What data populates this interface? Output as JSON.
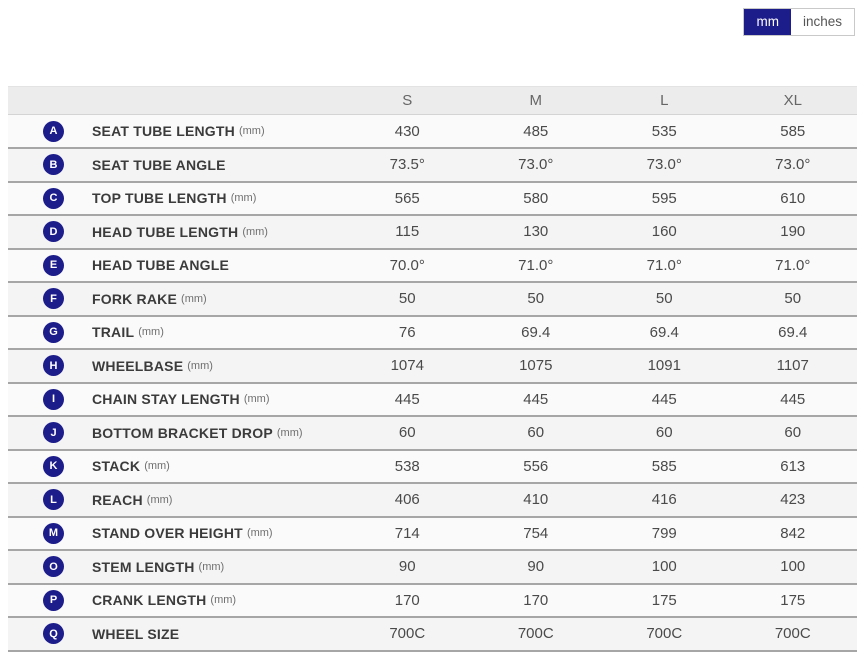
{
  "unit_toggle": {
    "options": [
      {
        "label": "mm",
        "active": true
      },
      {
        "label": "inches",
        "active": false
      }
    ]
  },
  "colors": {
    "accent_navy": "#1c1c8b",
    "row_separator": "#a6a6a6",
    "header_bg": "#ececec",
    "row_bg": "#fafafa",
    "row_alt_bg": "#f4f4f4"
  },
  "table": {
    "columns": [
      "S",
      "M",
      "L",
      "XL"
    ],
    "rows": [
      {
        "letter": "A",
        "label": "SEAT TUBE LENGTH",
        "unit": "(mm)",
        "values": [
          "430",
          "485",
          "535",
          "585"
        ]
      },
      {
        "letter": "B",
        "label": "SEAT TUBE ANGLE",
        "unit": "",
        "values": [
          "73.5°",
          "73.0°",
          "73.0°",
          "73.0°"
        ]
      },
      {
        "letter": "C",
        "label": "TOP TUBE LENGTH",
        "unit": "(mm)",
        "values": [
          "565",
          "580",
          "595",
          "610"
        ]
      },
      {
        "letter": "D",
        "label": "HEAD TUBE LENGTH",
        "unit": "(mm)",
        "values": [
          "115",
          "130",
          "160",
          "190"
        ]
      },
      {
        "letter": "E",
        "label": "HEAD TUBE ANGLE",
        "unit": "",
        "values": [
          "70.0°",
          "71.0°",
          "71.0°",
          "71.0°"
        ]
      },
      {
        "letter": "F",
        "label": "FORK RAKE",
        "unit": "(mm)",
        "values": [
          "50",
          "50",
          "50",
          "50"
        ]
      },
      {
        "letter": "G",
        "label": "TRAIL",
        "unit": "(mm)",
        "values": [
          "76",
          "69.4",
          "69.4",
          "69.4"
        ]
      },
      {
        "letter": "H",
        "label": "WHEELBASE",
        "unit": "(mm)",
        "values": [
          "1074",
          "1075",
          "1091",
          "1107"
        ]
      },
      {
        "letter": "I",
        "label": "CHAIN STAY LENGTH",
        "unit": "(mm)",
        "values": [
          "445",
          "445",
          "445",
          "445"
        ]
      },
      {
        "letter": "J",
        "label": "BOTTOM BRACKET DROP",
        "unit": "(mm)",
        "values": [
          "60",
          "60",
          "60",
          "60"
        ]
      },
      {
        "letter": "K",
        "label": "STACK",
        "unit": "(mm)",
        "values": [
          "538",
          "556",
          "585",
          "613"
        ]
      },
      {
        "letter": "L",
        "label": "REACH",
        "unit": "(mm)",
        "values": [
          "406",
          "410",
          "416",
          "423"
        ]
      },
      {
        "letter": "M",
        "label": "STAND OVER HEIGHT",
        "unit": "(mm)",
        "values": [
          "714",
          "754",
          "799",
          "842"
        ]
      },
      {
        "letter": "O",
        "label": "STEM LENGTH",
        "unit": "(mm)",
        "values": [
          "90",
          "90",
          "100",
          "100"
        ]
      },
      {
        "letter": "P",
        "label": "CRANK LENGTH",
        "unit": "(mm)",
        "values": [
          "170",
          "170",
          "175",
          "175"
        ]
      },
      {
        "letter": "Q",
        "label": "WHEEL SIZE",
        "unit": "",
        "values": [
          "700C",
          "700C",
          "700C",
          "700C"
        ]
      }
    ]
  }
}
